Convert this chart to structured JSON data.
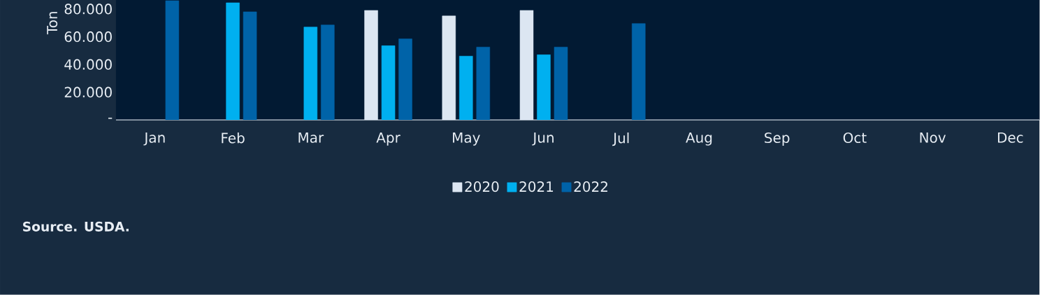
{
  "chart_data": {
    "type": "bar",
    "ylabel": "Ton",
    "categories": [
      "Jan",
      "Feb",
      "Mar",
      "Apr",
      "May",
      "Jun",
      "Jul",
      "Aug",
      "Sep",
      "Oct",
      "Nov",
      "Dec"
    ],
    "series": [
      {
        "name": "2020",
        "color": "#dce6f2",
        "values": [
          null,
          null,
          null,
          79000,
          75000,
          79000,
          null,
          null,
          null,
          null,
          null,
          null
        ]
      },
      {
        "name": "2021",
        "color": "#00b0f0",
        "values": [
          null,
          84500,
          67000,
          53500,
          46000,
          47000,
          null,
          null,
          null,
          null,
          null,
          null
        ]
      },
      {
        "name": "2022",
        "color": "#0063a8",
        "values": [
          86000,
          78000,
          68500,
          58500,
          52500,
          52500,
          69500,
          null,
          null,
          null,
          null,
          null
        ]
      }
    ],
    "ylim": [
      0,
      86500
    ],
    "yticks": [
      {
        "value": 0,
        "label": "-"
      },
      {
        "value": 20000,
        "label": "20.000"
      },
      {
        "value": 40000,
        "label": "40.000"
      },
      {
        "value": 60000,
        "label": "60.000"
      },
      {
        "value": 80000,
        "label": "80.000"
      }
    ],
    "grid": false,
    "legend": "bottom",
    "annotations": [
      "Source. USDA."
    ]
  }
}
